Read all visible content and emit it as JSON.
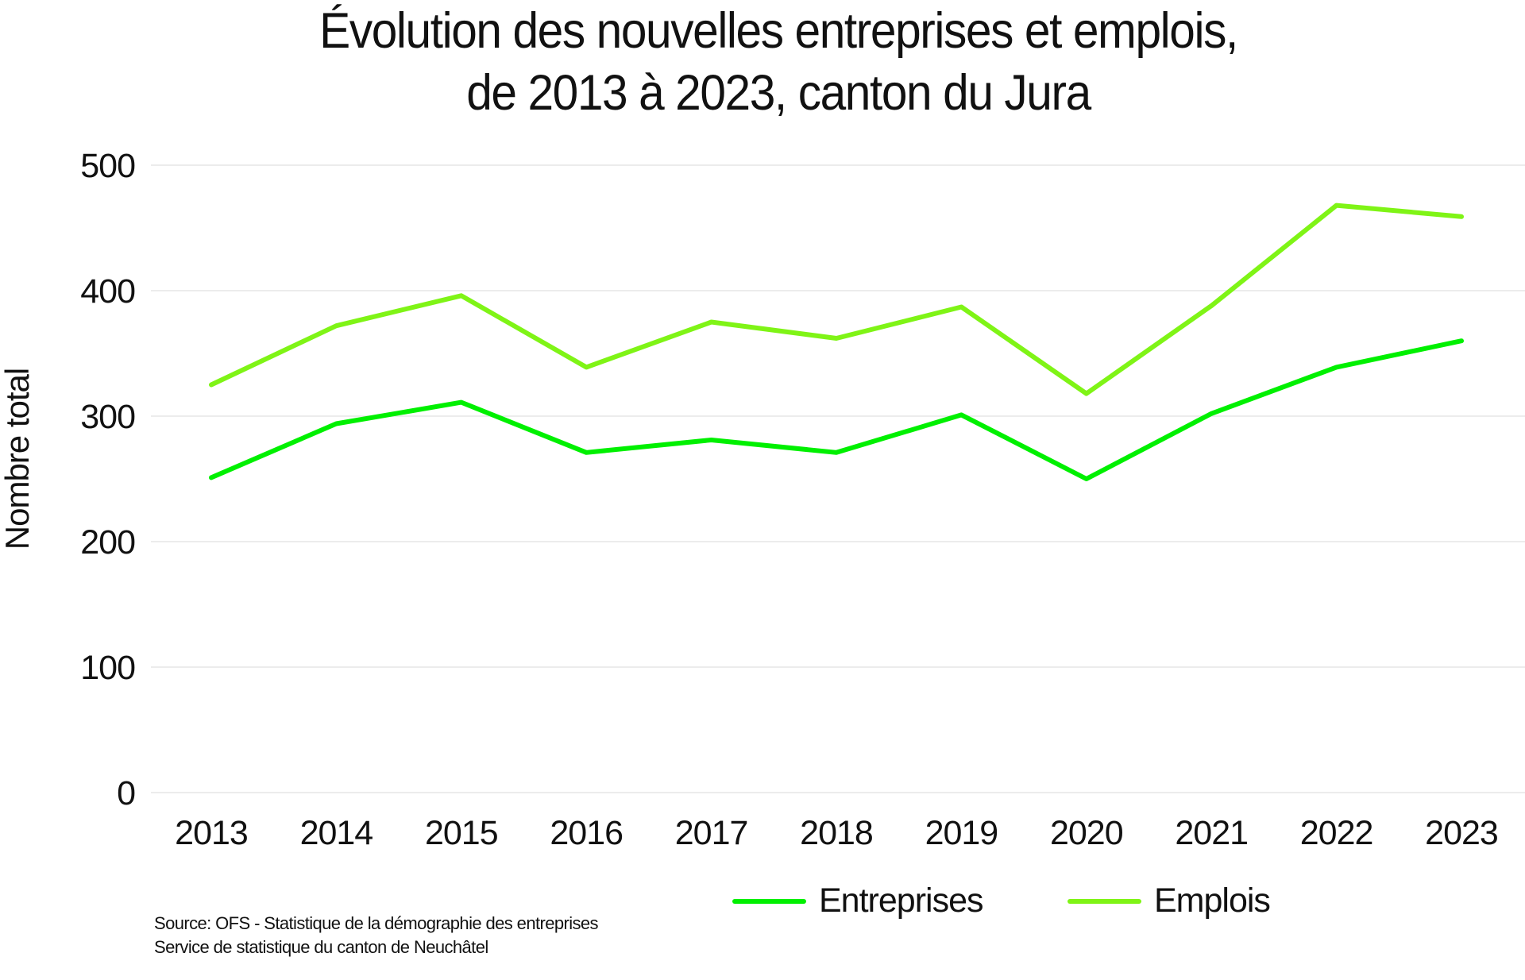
{
  "title": {
    "line1": "Évolution des nouvelles entreprises et emplois,",
    "line2": "de 2013 à 2023, canton du Jura"
  },
  "source": {
    "line1": "Source: OFS - Statistique de la démographie des entreprises",
    "line2": "Service de statistique du canton de Neuchâtel"
  },
  "legend": {
    "items": [
      {
        "label": "Entreprises",
        "color": "#00F000"
      },
      {
        "label": "Emplois",
        "color": "#7FF416"
      }
    ]
  },
  "chart_data": {
    "type": "line",
    "title": "Évolution des nouvelles entreprises et emplois, de 2013 à 2023, canton du Jura",
    "xlabel": "",
    "ylabel": "Nombre total",
    "categories": [
      "2013",
      "2014",
      "2015",
      "2016",
      "2017",
      "2018",
      "2019",
      "2020",
      "2021",
      "2022",
      "2023"
    ],
    "series": [
      {
        "name": "Entreprises",
        "color": "#00F000",
        "values": [
          251,
          294,
          311,
          271,
          281,
          271,
          301,
          250,
          302,
          339,
          360
        ]
      },
      {
        "name": "Emplois",
        "color": "#7FF416",
        "values": [
          325,
          372,
          396,
          339,
          375,
          362,
          387,
          318,
          388,
          468,
          459
        ]
      }
    ],
    "ylim": [
      0,
      500
    ],
    "yticks": [
      0,
      100,
      200,
      300,
      400,
      500
    ],
    "grid": true,
    "gridline_color": "#e6e6e6",
    "legend_position": "bottom-right"
  }
}
